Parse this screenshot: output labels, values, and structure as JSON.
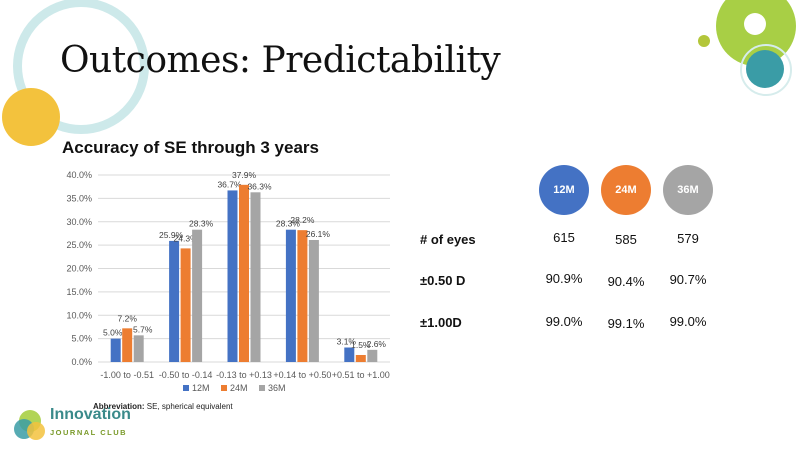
{
  "slide": {
    "title": "Outcomes: Predictability",
    "subtitle": "Accuracy of SE through 3 years",
    "abbrev_label": "Abbreviation:",
    "abbrev_text": " SE, spherical equivalent"
  },
  "colors": {
    "s12": "#4472C4",
    "s24": "#ED7D31",
    "s36": "#A5A5A5"
  },
  "chart_data": {
    "type": "bar",
    "title": "",
    "xlabel": "",
    "ylabel": "",
    "ylim": [
      0,
      40
    ],
    "yticks": [
      "0.0%",
      "5.0%",
      "10.0%",
      "15.0%",
      "20.0%",
      "25.0%",
      "30.0%",
      "35.0%",
      "40.0%"
    ],
    "categories": [
      "-1.00 to -0.51",
      "-0.50 to -0.14",
      "-0.13 to +0.13",
      "+0.14 to +0.50",
      "+0.51 to +1.00"
    ],
    "series": [
      {
        "name": "12M",
        "values": [
          5.0,
          25.9,
          36.7,
          28.3,
          3.1
        ],
        "labels": [
          "5.0%",
          "25.9%",
          "36.7%",
          "28.3%",
          "3.1%"
        ]
      },
      {
        "name": "24M",
        "values": [
          7.2,
          24.3,
          37.9,
          28.2,
          1.5
        ],
        "labels": [
          "7.2%",
          "24.3%",
          "37.9%",
          "28.2%",
          "1.5%"
        ]
      },
      {
        "name": "36M",
        "values": [
          5.7,
          28.3,
          36.3,
          26.1,
          2.6
        ],
        "labels": [
          "5.7%",
          "28.3%",
          "36.3%",
          "26.1%",
          "2.6%"
        ]
      }
    ],
    "legend": "bottom"
  },
  "table": {
    "columns": [
      "12M",
      "24M",
      "36M"
    ],
    "rows": [
      {
        "label": "# of eyes",
        "values": [
          "615",
          "585",
          "579"
        ]
      },
      {
        "label": "±0.50 D",
        "values": [
          "90.9%",
          "90.4%",
          "90.7%"
        ]
      },
      {
        "label": "±1.00D",
        "values": [
          "99.0%",
          "99.1%",
          "99.0%"
        ]
      }
    ]
  },
  "logo": {
    "line1": "Innovation",
    "line2": "JOURNAL CLUB"
  }
}
